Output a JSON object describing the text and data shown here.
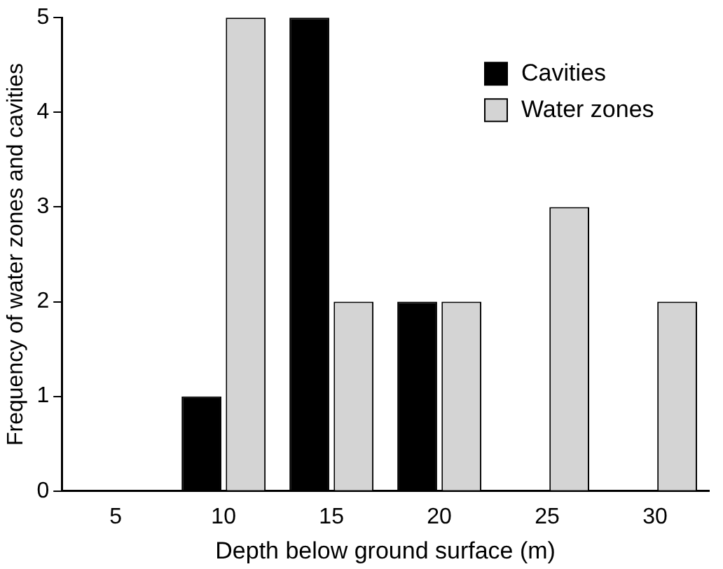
{
  "chart_data": {
    "type": "bar",
    "xlabel": "Depth below ground surface (m)",
    "ylabel": "Frequency of water zones and cavities",
    "categories": [
      "5",
      "10",
      "15",
      "20",
      "25",
      "30"
    ],
    "series": [
      {
        "name": "Cavities",
        "color": "#000000",
        "values": [
          0,
          1,
          5,
          2,
          0,
          0
        ]
      },
      {
        "name": "Water zones",
        "color": "#d4d4d4",
        "values": [
          0,
          5,
          2,
          2,
          3,
          2
        ]
      }
    ],
    "ylim": [
      0,
      5
    ],
    "yticks": [
      0,
      1,
      2,
      3,
      4,
      5
    ],
    "grid": false,
    "legend": "top right"
  }
}
